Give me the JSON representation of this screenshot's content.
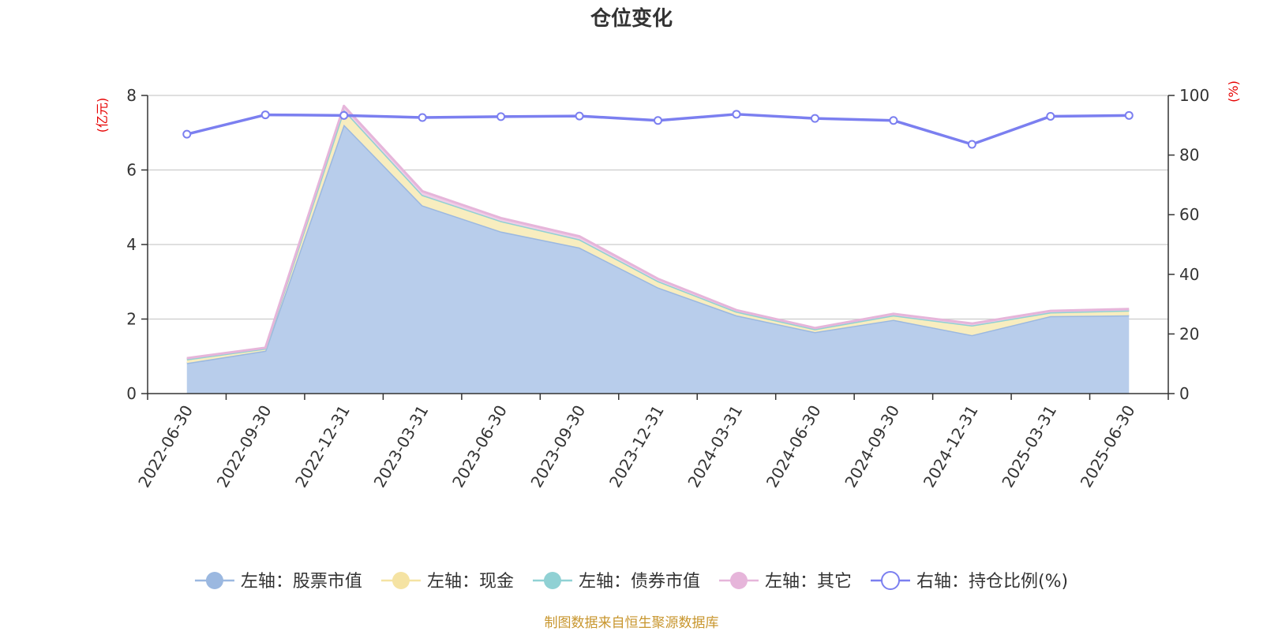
{
  "chart_data": {
    "type": "area",
    "title": "仓位变化",
    "left_axis_unit": "(亿元)",
    "right_axis_unit": "(%)",
    "categories": [
      "2022-06-30",
      "2022-09-30",
      "2022-12-31",
      "2023-03-31",
      "2023-06-30",
      "2023-09-30",
      "2023-12-31",
      "2024-03-31",
      "2024-06-30",
      "2024-09-30",
      "2024-12-31",
      "2025-03-31",
      "2025-06-30"
    ],
    "left_ylim": [
      0,
      8
    ],
    "left_ticks": [
      0,
      2,
      4,
      6,
      8
    ],
    "right_ylim": [
      0,
      100
    ],
    "right_ticks": [
      0,
      20,
      40,
      60,
      80,
      100
    ],
    "grid": true,
    "legend_position": "bottom",
    "series": [
      {
        "name": "左轴：股票市值",
        "axis": "left",
        "stacked": true,
        "color": "#9bb8e0",
        "fill": "#b8cdeb",
        "values": [
          0.82,
          1.15,
          7.22,
          5.05,
          4.35,
          3.92,
          2.85,
          2.1,
          1.65,
          1.98,
          1.57,
          2.08,
          2.1
        ]
      },
      {
        "name": "左轴：现金",
        "axis": "left",
        "stacked": true,
        "color": "#f5e3a3",
        "fill": "#f8edbf",
        "values": [
          0.1,
          0.06,
          0.4,
          0.28,
          0.28,
          0.22,
          0.17,
          0.1,
          0.08,
          0.12,
          0.26,
          0.1,
          0.13
        ]
      },
      {
        "name": "左轴：债券市值",
        "axis": "left",
        "stacked": true,
        "color": "#90d1d4",
        "fill": "#b5e2e4",
        "values": [
          0,
          0,
          0,
          0,
          0,
          0,
          0,
          0,
          0,
          0,
          0,
          0,
          0
        ]
      },
      {
        "name": "左轴：其它",
        "axis": "left",
        "stacked": true,
        "color": "#e6b5da",
        "fill": "#efcde7",
        "values": [
          0.03,
          0.02,
          0.1,
          0.1,
          0.08,
          0.08,
          0.06,
          0.04,
          0.03,
          0.04,
          0.05,
          0.04,
          0.04
        ]
      },
      {
        "name": "右轴：持仓比例(%)",
        "axis": "right",
        "stacked": false,
        "color": "#7b7ff0",
        "values": [
          87.0,
          93.5,
          93.3,
          92.6,
          92.9,
          93.1,
          91.6,
          93.7,
          92.3,
          91.6,
          83.6,
          93.0,
          93.3
        ]
      }
    ],
    "source": "制图数据来自恒生聚源数据库"
  }
}
